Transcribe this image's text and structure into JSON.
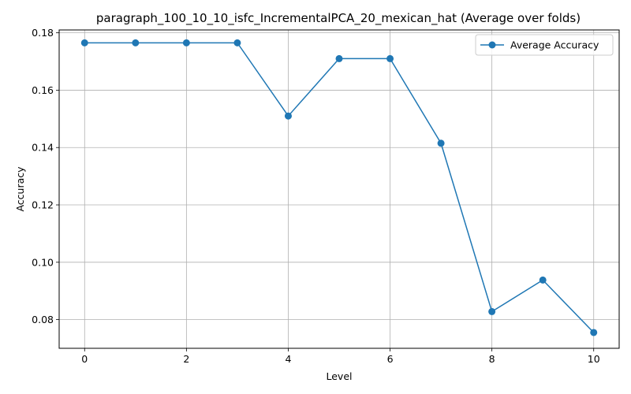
{
  "chart_data": {
    "type": "line",
    "title": "paragraph_100_10_10_isfc_IncrementalPCA_20_mexican_hat (Average over folds)",
    "xlabel": "Level",
    "ylabel": "Accuracy",
    "xlim": [
      -0.5,
      10.5
    ],
    "ylim": [
      0.07,
      0.181
    ],
    "x_ticks": [
      0,
      2,
      4,
      6,
      8,
      10
    ],
    "x_tick_labels": [
      "0",
      "2",
      "4",
      "6",
      "8",
      "10"
    ],
    "y_ticks": [
      0.08,
      0.1,
      0.12,
      0.14,
      0.16,
      0.18
    ],
    "y_tick_labels": [
      "0.08",
      "0.10",
      "0.12",
      "0.14",
      "0.16",
      "0.18"
    ],
    "grid": true,
    "legend_position": "top-right",
    "series": [
      {
        "name": "Average Accuracy",
        "color": "#1f77b4",
        "marker": "circle",
        "x": [
          0,
          1,
          2,
          3,
          4,
          5,
          6,
          7,
          8,
          9,
          10
        ],
        "y": [
          0.1765,
          0.1765,
          0.1765,
          0.1765,
          0.151,
          0.171,
          0.171,
          0.1415,
          0.0828,
          0.0938,
          0.0755
        ]
      }
    ]
  }
}
